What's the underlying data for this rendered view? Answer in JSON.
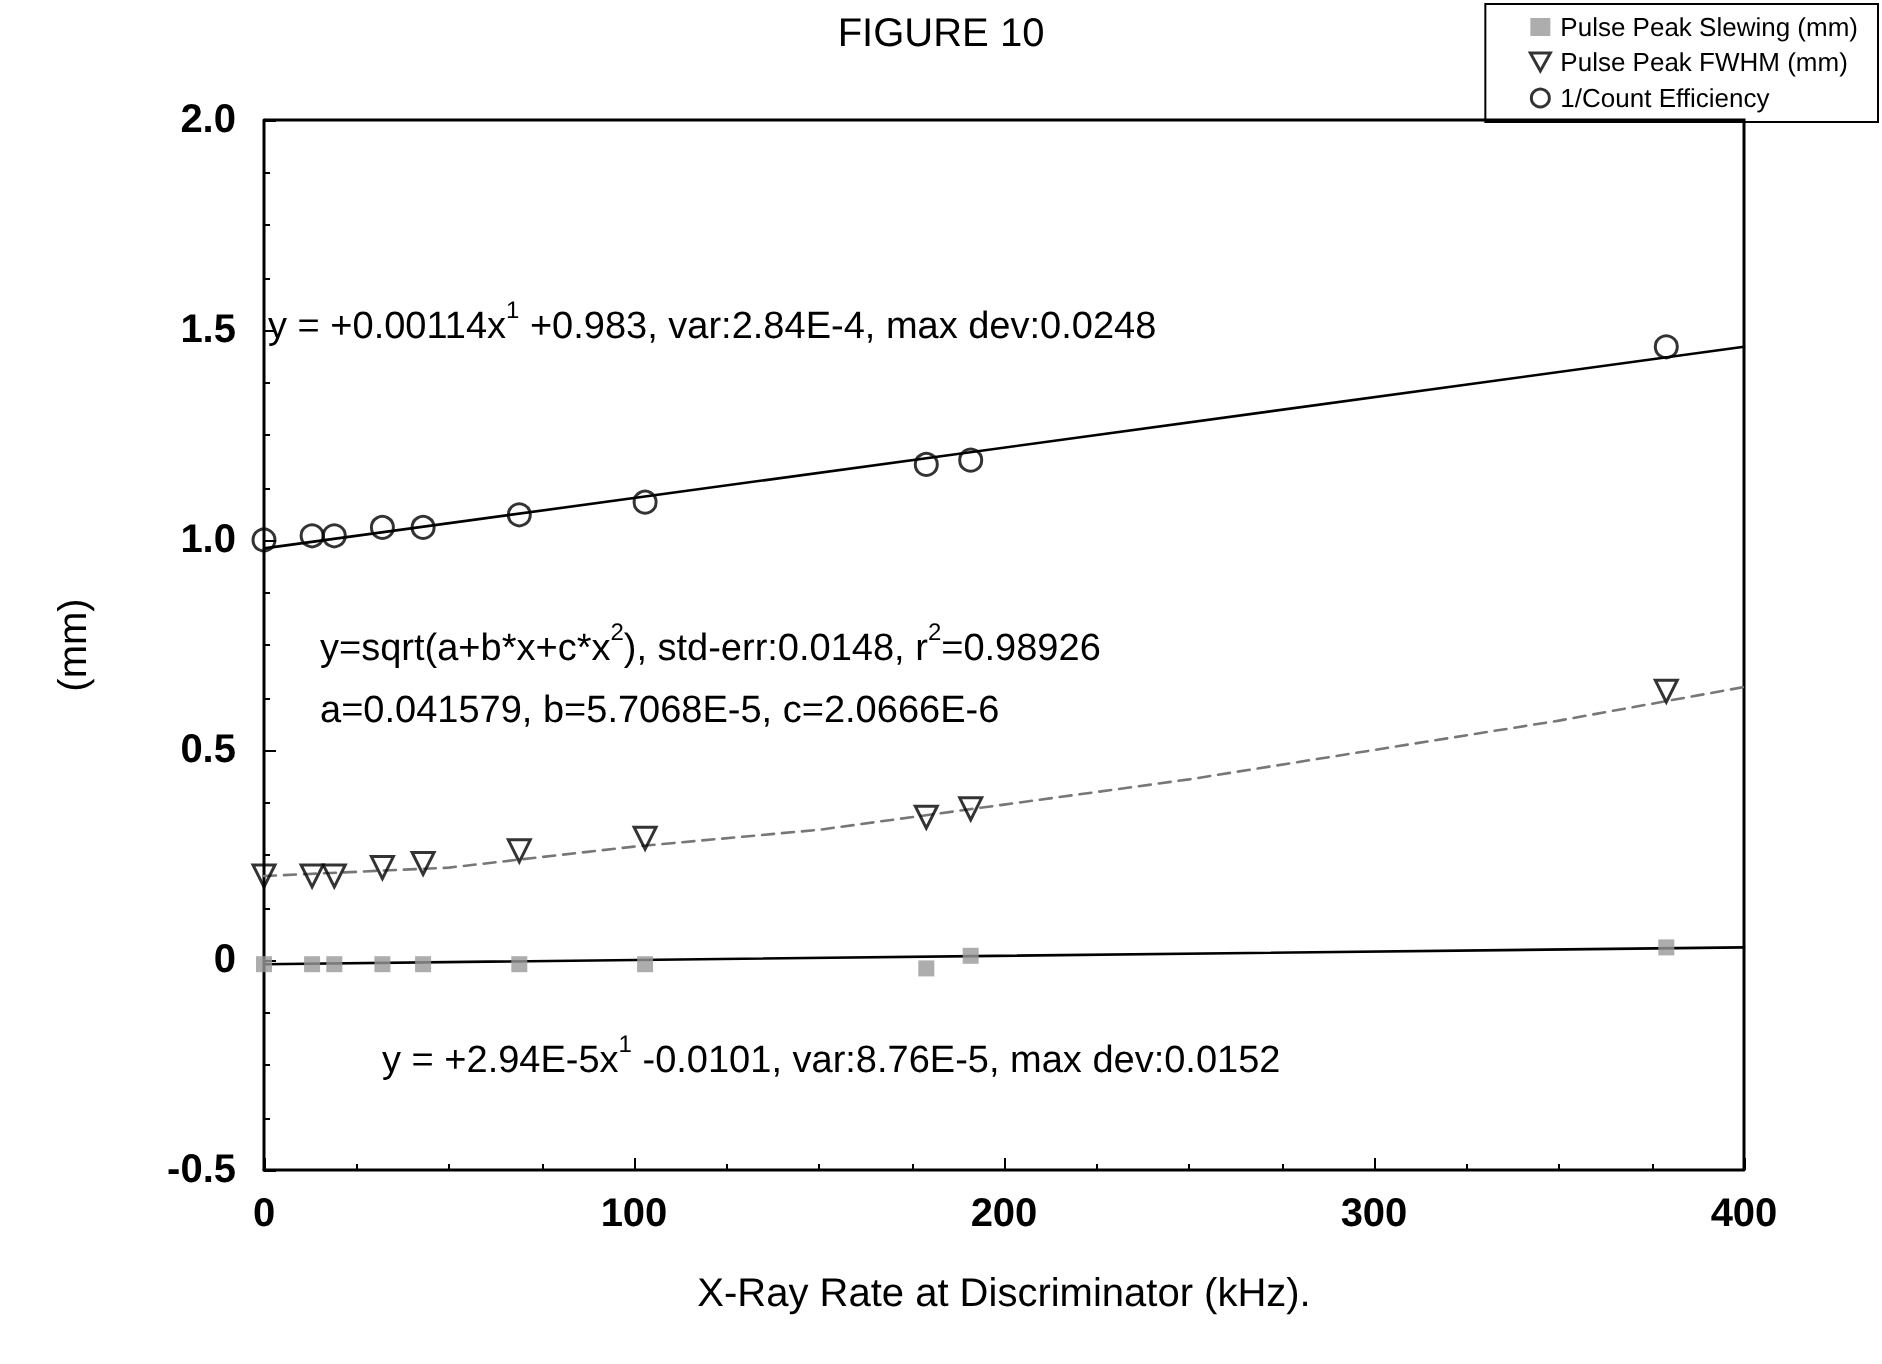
{
  "chart_data": {
    "type": "scatter",
    "title": "FIGURE 10",
    "xlabel": "X-Ray Rate at Discriminator (kHz).",
    "ylabel": "(mm)",
    "xlim": [
      0,
      400
    ],
    "xticks": [
      0,
      100,
      200,
      300,
      400
    ],
    "ylim": [
      -0.5,
      2.0
    ],
    "yticks": [
      {
        "value": -0.5,
        "label": "-0.5"
      },
      0,
      {
        "value": 0.5,
        "label": "0.5"
      },
      {
        "value": 1,
        "label": "1.0"
      },
      {
        "value": 1.5,
        "label": "1.5"
      },
      {
        "value": 2,
        "label": "2.0"
      }
    ],
    "grid": false,
    "legend": "top right",
    "annotations": [
      "y = +0.00114x$^{1}$ +0.983, var:2.84E-4, max dev:0.0248",
      "y=sqrt(a+b*x+c*x$^{2}$), std-err:0.0148, r$^{2}$=0.98926",
      "a=0.041579, b=5.7068E-5, c=2.0666E-6",
      "y = +2.94E-5x$^{1}$ -0.0101, var:8.76E-5, max dev:0.0152"
    ],
    "series": [
      {
        "name": "Pulse Peak Slewing (mm)",
        "color": "#999999",
        "marker": "square",
        "x": [
          0,
          13,
          19,
          32,
          43,
          69,
          103,
          179,
          191,
          379
        ],
        "values": [
          -0.01,
          -0.01,
          -0.01,
          -0.01,
          -0.01,
          -0.01,
          -0.01,
          -0.02,
          0.01,
          0.03
        ]
      },
      {
        "name": "Pulse Peak FWHM (mm)",
        "color": "#000000",
        "marker": "triangle",
        "x": [
          0,
          13,
          19,
          32,
          43,
          69,
          103,
          179,
          191,
          379
        ],
        "values": [
          0.2,
          0.2,
          0.2,
          0.22,
          0.23,
          0.26,
          0.29,
          0.34,
          0.36,
          0.64
        ]
      },
      {
        "name": "1/Count Efficiency",
        "color": "#000000",
        "marker": "circle",
        "x": [
          0,
          13,
          19,
          32,
          43,
          69,
          103,
          179,
          191,
          379
        ],
        "values": [
          1.0,
          1.01,
          1.01,
          1.03,
          1.03,
          1.06,
          1.09,
          1.18,
          1.19,
          1.46
        ]
      },
      {
        "type": "line",
        "color": "#000000",
        "marker": "none",
        "line_style": "solid",
        "x": [
          0,
          400
        ],
        "values": [
          0.98,
          1.46
        ]
      },
      {
        "type": "line",
        "color": "#777777",
        "marker": "none",
        "line_style": "dashed",
        "x": [
          0,
          50,
          100,
          150,
          200,
          250,
          300,
          350,
          400
        ],
        "values": [
          0.2,
          0.22,
          0.27,
          0.31,
          0.37,
          0.43,
          0.5,
          0.57,
          0.65
        ]
      },
      {
        "type": "line",
        "color": "#000000",
        "marker": "none",
        "line_style": "solid",
        "x": [
          0,
          400
        ],
        "values": [
          -0.01,
          0.03
        ]
      }
    ]
  }
}
